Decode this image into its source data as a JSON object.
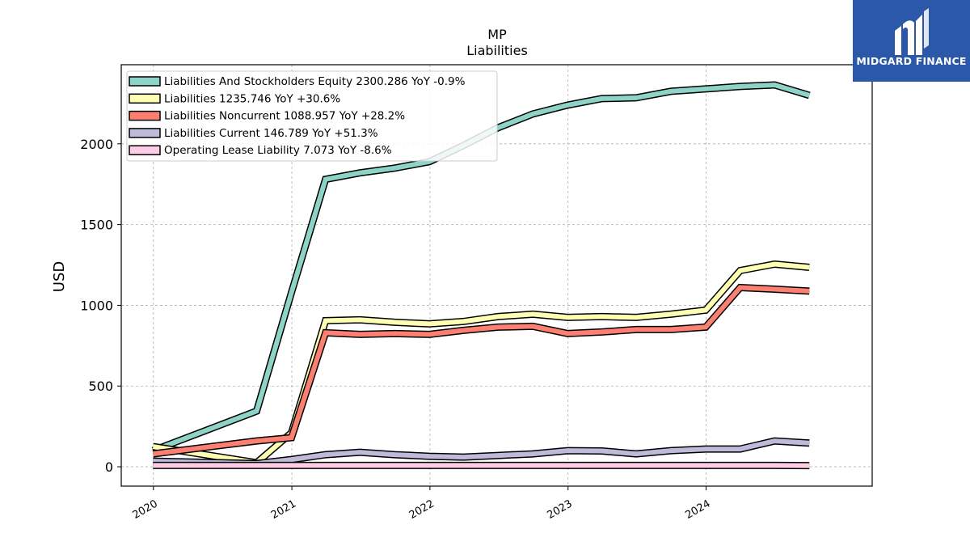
{
  "brand": {
    "name": "MIDGARD FINANCE",
    "bg_color": "#2b58a8"
  },
  "chart_data": {
    "type": "line",
    "title": "MP",
    "subtitle": "Liabilities",
    "xlabel": "",
    "ylabel": "USD",
    "x_ticks": [
      "2020",
      "2021",
      "2022",
      "2023",
      "2024"
    ],
    "y_ticks": [
      0,
      500,
      1000,
      1500,
      2000
    ],
    "ylim": [
      -120,
      2490
    ],
    "xlim": [
      "2019-10-08",
      "2025-03-15"
    ],
    "grid": true,
    "legend_position": "top-left",
    "x": [
      "2019-12-31",
      "2020-09-30",
      "2020-12-31",
      "2021-03-31",
      "2021-06-30",
      "2021-09-30",
      "2021-12-31",
      "2022-03-31",
      "2022-06-30",
      "2022-09-30",
      "2022-12-31",
      "2023-03-31",
      "2023-06-30",
      "2023-09-30",
      "2023-12-31",
      "2024-03-31",
      "2024-06-30",
      "2024-09-30"
    ],
    "series": [
      {
        "name": "Liabilities And Stockholders Equity",
        "legend_label": "Liabilities And Stockholders Equity  2300.286 YoY -0.9%",
        "color": "#8dd3c7",
        "values": [
          100,
          345,
          1080,
          1780,
          1820,
          1850,
          1890,
          1990,
          2100,
          2185,
          2240,
          2280,
          2285,
          2325,
          2340,
          2355,
          2365,
          2300
        ]
      },
      {
        "name": "Liabilities",
        "legend_label": "Liabilities  1235.746 YoY +30.6%",
        "color": "#ffffb3",
        "values": [
          125,
          25,
          210,
          905,
          910,
          895,
          885,
          900,
          930,
          945,
          925,
          930,
          925,
          945,
          970,
          1215,
          1255,
          1235
        ]
      },
      {
        "name": "Liabilities Noncurrent",
        "legend_label": "Liabilities Noncurrent  1088.957 YoY +28.2%",
        "color": "#fb8072",
        "values": [
          80,
          160,
          180,
          830,
          820,
          825,
          820,
          845,
          865,
          870,
          825,
          835,
          850,
          850,
          865,
          1110,
          1100,
          1088
        ]
      },
      {
        "name": "Liabilities Current",
        "legend_label": "Liabilities Current  146.789 YoY +51.3%",
        "color": "#bebada",
        "values": [
          35,
          20,
          45,
          75,
          90,
          75,
          65,
          60,
          70,
          80,
          100,
          98,
          80,
          100,
          110,
          110,
          160,
          147
        ]
      },
      {
        "name": "Operating Lease Liability",
        "legend_label": "Operating Lease Liability  7.073 YoY -8.6%",
        "color": "#fccde5",
        "values": [
          8,
          8,
          8,
          8,
          8,
          8,
          8,
          8,
          8,
          8,
          8,
          8,
          8,
          8,
          8,
          8,
          8,
          7
        ]
      }
    ]
  }
}
